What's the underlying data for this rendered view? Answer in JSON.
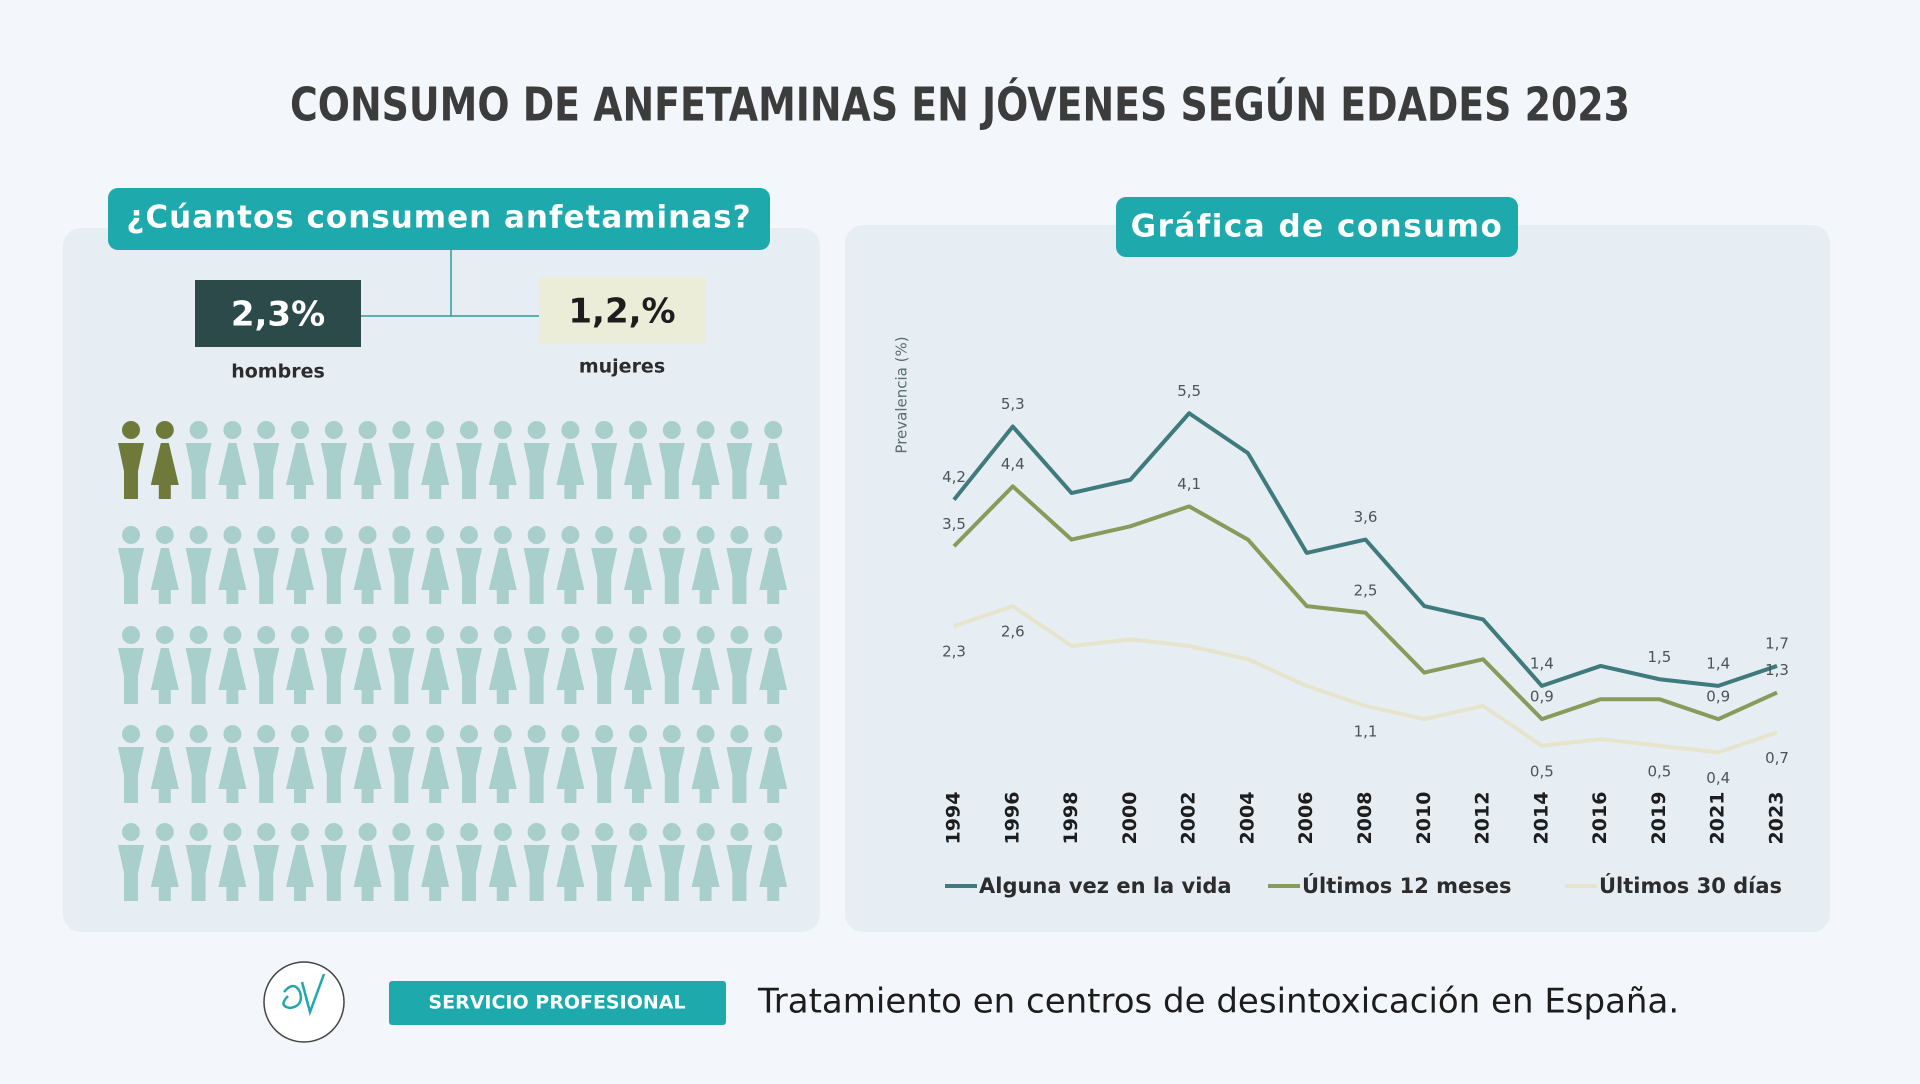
{
  "header": {
    "title": "CONSUMO DE ANFETAMINAS EN JÓVENES SEGÚN EDADES 2023"
  },
  "left_panel": {
    "heading": "¿Cúantos consumen anfetaminas?",
    "stats": [
      {
        "value": "2,3%",
        "label": "hombres"
      },
      {
        "value": "1,2,%",
        "label": "mujeres"
      }
    ]
  },
  "right_panel": {
    "heading": "Gráfica de consumo"
  },
  "footer": {
    "badge": "SERVICIO PROFESIONAL",
    "text": "Tratamiento en centros de desintoxicación en España."
  },
  "chart_data": {
    "type": "line",
    "ylabel": "Prevalencia (%)",
    "categories": [
      "1994",
      "1996",
      "1998",
      "2000",
      "2002",
      "2004",
      "2006",
      "2008",
      "2010",
      "2012",
      "2014",
      "2016",
      "2019",
      "2021",
      "2023"
    ],
    "ylim": [
      0,
      6
    ],
    "series": [
      {
        "name": "Alguna vez en la vida",
        "color": "#3f7a7d",
        "values": [
          4.2,
          5.3,
          4.3,
          4.5,
          5.5,
          4.9,
          3.4,
          3.6,
          2.6,
          2.4,
          1.4,
          1.7,
          1.5,
          1.4,
          1.7
        ],
        "value_labels": [
          "4,2",
          "5,3",
          null,
          null,
          "5,5",
          null,
          null,
          "3,6",
          null,
          null,
          "1,4",
          null,
          "1,5",
          "1,4",
          "1,7"
        ]
      },
      {
        "name": "Últimos 12 meses",
        "color": "#8a9a5b",
        "values": [
          3.5,
          4.4,
          3.6,
          3.8,
          4.1,
          3.6,
          2.6,
          2.5,
          1.6,
          1.8,
          0.9,
          1.2,
          1.2,
          0.9,
          1.3
        ],
        "value_labels": [
          "3,5",
          "4,4",
          null,
          null,
          "4,1",
          null,
          null,
          "2,5",
          null,
          null,
          "0,9",
          null,
          null,
          "0,9",
          "1,3"
        ]
      },
      {
        "name": "Últimos 30 días",
        "color": "#e6e4cc",
        "values": [
          2.3,
          2.6,
          2.0,
          2.1,
          2.0,
          1.8,
          1.4,
          1.1,
          0.9,
          1.1,
          0.5,
          0.6,
          0.5,
          0.4,
          0.7
        ],
        "value_labels": [
          "2,3",
          "2,6",
          null,
          null,
          null,
          null,
          null,
          "1,1",
          null,
          null,
          "0,5",
          null,
          "0,5",
          "0,4",
          "0,7"
        ]
      }
    ]
  }
}
